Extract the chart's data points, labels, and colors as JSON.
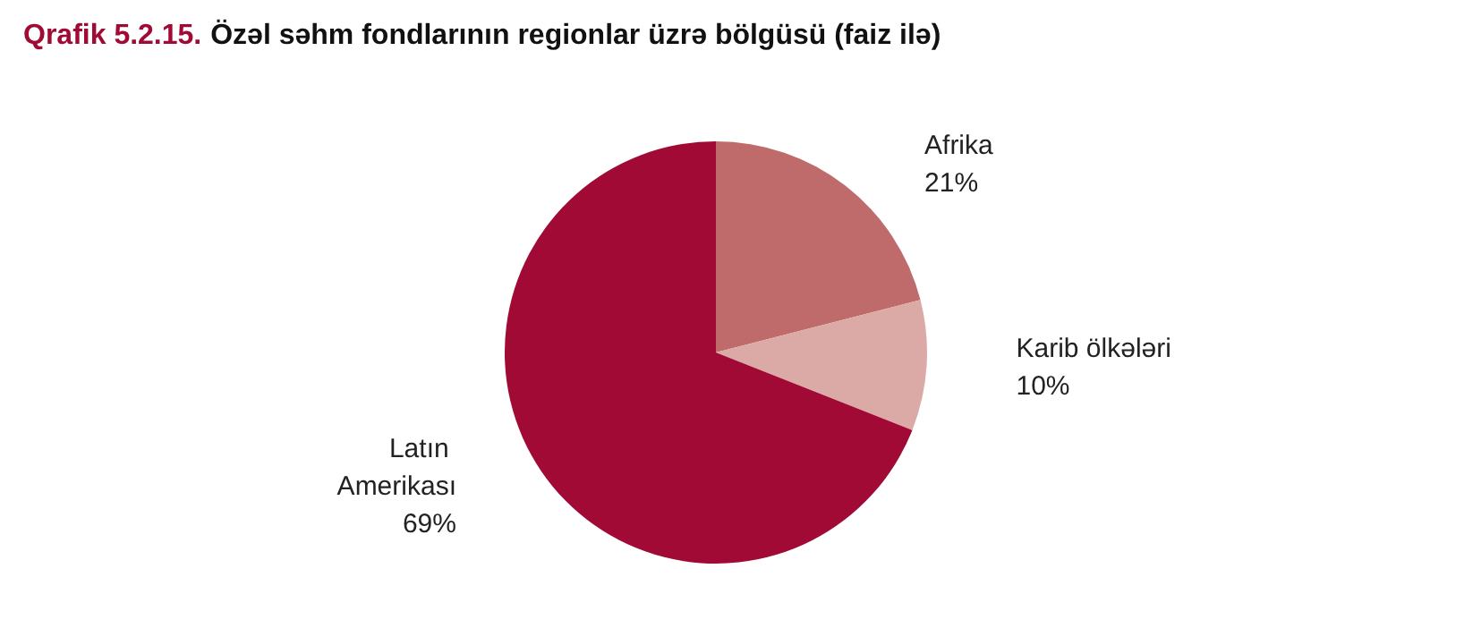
{
  "chart_data": {
    "type": "pie",
    "title": "Qrafik 5.2.15. Özəl səhm fondlarının regionlar üzrə bölgüsü (faiz ilə)",
    "categories": [
      "Afrika",
      "Karib ölkələri",
      "Latın Amerikası"
    ],
    "values": [
      21,
      10,
      69
    ],
    "colors": [
      "#c06b6b",
      "#dcaaa6",
      "#a00a35"
    ],
    "value_labels": [
      "21%",
      "10%",
      "69%"
    ],
    "legend": false
  }
}
